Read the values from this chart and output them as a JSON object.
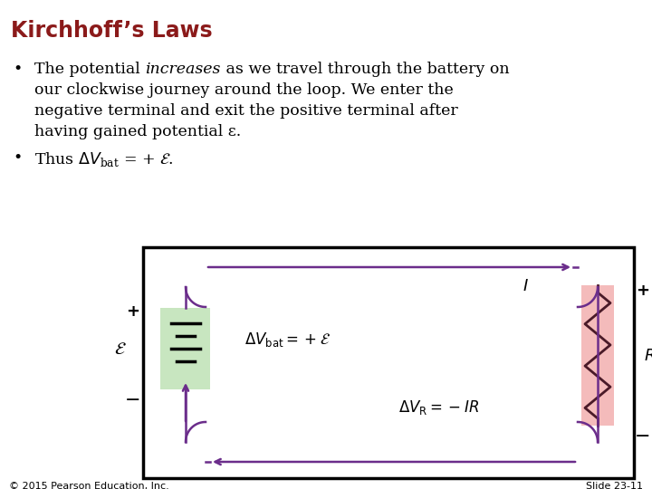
{
  "title": "Kirchhoff’s Laws",
  "title_color": "#8B1A1A",
  "title_fontsize": 17,
  "background_color": "#FFFFFF",
  "body_fontsize": 12.5,
  "loop_color": "#6B2D8B",
  "loop_lw": 2.0,
  "battery_color": "#C8E6C0",
  "resistor_color": "#F4BBBB",
  "footer_left": "© 2015 Pearson Education, Inc.",
  "footer_right": "Slide 23-11"
}
